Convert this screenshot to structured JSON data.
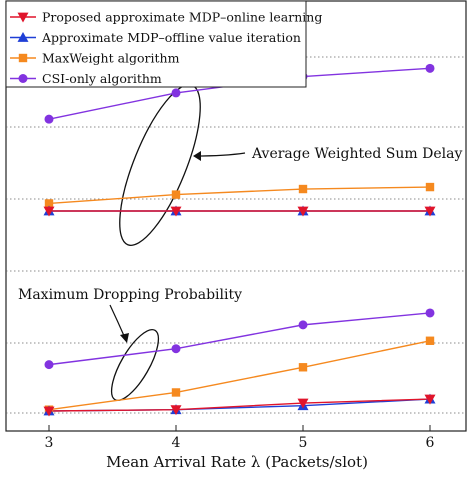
{
  "chart_data": {
    "type": "line",
    "xlabel": "Mean Arrival Rate λ (Packets/slot)",
    "x": [
      3,
      4,
      5,
      6
    ],
    "x_ticks": [
      "3",
      "4",
      "5",
      "6"
    ],
    "legend_placement": "top-left",
    "grid": "horizontal-dotted",
    "annotations": [
      {
        "text": "Average Weighted Sum Delay"
      },
      {
        "text": "Maximum  Dropping Probability"
      }
    ],
    "groups": [
      {
        "name": "delay",
        "series": [
          {
            "name": "Proposed approximate MDP–online learning",
            "values": [
              0.575,
              0.575,
              0.575,
              0.575
            ],
            "color": "#e0142b",
            "marker": "triangle-down"
          },
          {
            "name": "Approximate MDP–offline value iteration",
            "values": [
              0.575,
              0.575,
              0.575,
              0.575
            ],
            "color": "#1f3fd6",
            "marker": "triangle-up"
          },
          {
            "name": "MaxWeight algorithm",
            "values": [
              0.598,
              0.625,
              0.642,
              0.648
            ],
            "color": "#f5891f",
            "marker": "square"
          },
          {
            "name": "CSI-only algorithm",
            "values": [
              0.855,
              0.935,
              0.985,
              1.01
            ],
            "color": "#8233e0",
            "marker": "circle"
          }
        ]
      },
      {
        "name": "dropping",
        "series": [
          {
            "name": "Proposed approximate MDP–online learning",
            "values": [
              0.005,
              0.01,
              0.035,
              0.05
            ],
            "color": "#e0142b",
            "marker": "triangle-down"
          },
          {
            "name": "Approximate MDP–offline value iteration",
            "values": [
              0.005,
              0.01,
              0.025,
              0.05
            ],
            "color": "#1f3fd6",
            "marker": "triangle-up"
          },
          {
            "name": "MaxWeight algorithm",
            "values": [
              0.01,
              0.075,
              0.17,
              0.27
            ],
            "color": "#f5891f",
            "marker": "square"
          },
          {
            "name": "CSI-only algorithm",
            "values": [
              0.18,
              0.24,
              0.33,
              0.375
            ],
            "color": "#8233e0",
            "marker": "circle"
          }
        ]
      }
    ]
  }
}
